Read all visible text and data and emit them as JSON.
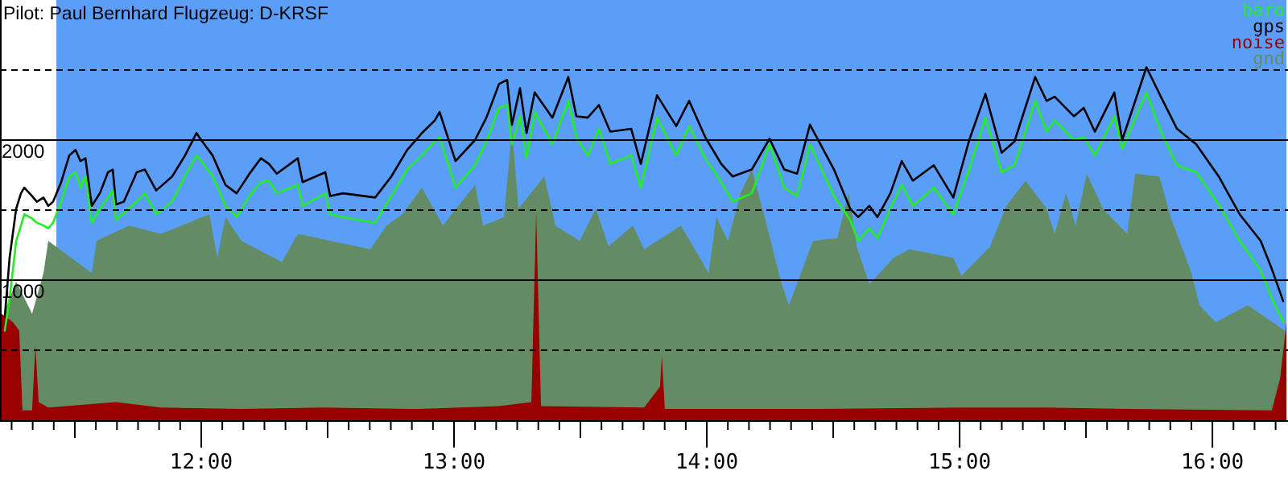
{
  "chart_data": {
    "type": "line",
    "title": "Pilot: Paul Bernhard Flugzeug: D-KRSF",
    "xlim": [
      11.204,
      16.299
    ],
    "ylim": [
      0,
      3000
    ],
    "xticks": [
      {
        "value": 11.25,
        "label": null
      },
      {
        "value": 11.3333,
        "label": null
      },
      {
        "value": 11.4167,
        "label": null
      },
      {
        "value": 11.5,
        "label": null
      },
      {
        "value": 11.5833,
        "label": null
      },
      {
        "value": 11.6667,
        "label": null
      },
      {
        "value": 11.75,
        "label": null
      },
      {
        "value": 11.8333,
        "label": null
      },
      {
        "value": 11.9167,
        "label": null
      },
      {
        "value": 12,
        "label": "12:00"
      },
      {
        "value": 12.0833,
        "label": null
      },
      {
        "value": 12.1667,
        "label": null
      },
      {
        "value": 12.25,
        "label": null
      },
      {
        "value": 12.3333,
        "label": null
      },
      {
        "value": 12.4167,
        "label": null
      },
      {
        "value": 12.5,
        "label": null
      },
      {
        "value": 12.5833,
        "label": null
      },
      {
        "value": 12.6667,
        "label": null
      },
      {
        "value": 12.75,
        "label": null
      },
      {
        "value": 12.8333,
        "label": null
      },
      {
        "value": 12.9167,
        "label": null
      },
      {
        "value": 13,
        "label": "13:00"
      },
      {
        "value": 13.0833,
        "label": null
      },
      {
        "value": 13.1667,
        "label": null
      },
      {
        "value": 13.25,
        "label": null
      },
      {
        "value": 13.3333,
        "label": null
      },
      {
        "value": 13.4167,
        "label": null
      },
      {
        "value": 13.5,
        "label": null
      },
      {
        "value": 13.5833,
        "label": null
      },
      {
        "value": 13.6667,
        "label": null
      },
      {
        "value": 13.75,
        "label": null
      },
      {
        "value": 13.8333,
        "label": null
      },
      {
        "value": 13.9167,
        "label": null
      },
      {
        "value": 14,
        "label": "14:00"
      },
      {
        "value": 14.0833,
        "label": null
      },
      {
        "value": 14.1667,
        "label": null
      },
      {
        "value": 14.25,
        "label": null
      },
      {
        "value": 14.3333,
        "label": null
      },
      {
        "value": 14.4167,
        "label": null
      },
      {
        "value": 14.5,
        "label": null
      },
      {
        "value": 14.5833,
        "label": null
      },
      {
        "value": 14.6667,
        "label": null
      },
      {
        "value": 14.75,
        "label": null
      },
      {
        "value": 14.8333,
        "label": null
      },
      {
        "value": 14.9167,
        "label": null
      },
      {
        "value": 15,
        "label": "15:00"
      },
      {
        "value": 15.0833,
        "label": null
      },
      {
        "value": 15.1667,
        "label": null
      },
      {
        "value": 15.25,
        "label": null
      },
      {
        "value": 15.3333,
        "label": null
      },
      {
        "value": 15.4167,
        "label": null
      },
      {
        "value": 15.5,
        "label": null
      },
      {
        "value": 15.5833,
        "label": null
      },
      {
        "value": 15.6667,
        "label": null
      },
      {
        "value": 15.75,
        "label": null
      },
      {
        "value": 15.8333,
        "label": null
      },
      {
        "value": 15.9167,
        "label": null
      },
      {
        "value": 16,
        "label": "16:00"
      },
      {
        "value": 16.0833,
        "label": null
      },
      {
        "value": 16.1667,
        "label": null
      },
      {
        "value": 16.25,
        "label": null
      }
    ],
    "yticks": [
      {
        "value": 500,
        "label": null
      },
      1000,
      {
        "value": 1500,
        "label": null
      },
      2000,
      {
        "value": 2500,
        "label": null
      }
    ],
    "grid": "y",
    "legend": "top right",
    "bands": [
      {
        "axis": "x",
        "from": 11.427,
        "to": 16.293,
        "color": "#5a9ef8"
      }
    ],
    "series": [
      {
        "name": "baro",
        "color": "#22ee22",
        "x": [
          11.223,
          11.242,
          11.268,
          11.287,
          11.3,
          11.331,
          11.35,
          11.376,
          11.395,
          11.414,
          11.446,
          11.478,
          11.503,
          11.522,
          11.542,
          11.567,
          11.599,
          11.631,
          11.65,
          11.663,
          11.694,
          11.745,
          11.777,
          11.822,
          11.885,
          11.936,
          11.981,
          12,
          12.045,
          12.096,
          12.14,
          12.191,
          12.236,
          12.268,
          12.299,
          12.382,
          12.401,
          12.491,
          12.51,
          12.561,
          12.688,
          12.752,
          12.815,
          12.873,
          12.924,
          12.943,
          13.006,
          13.083,
          13.128,
          13.178,
          13.21,
          13.229,
          13.261,
          13.287,
          13.319,
          13.389,
          13.452,
          13.484,
          13.529,
          13.573,
          13.618,
          13.701,
          13.739,
          13.803,
          13.879,
          13.93,
          13.994,
          14.057,
          14.102,
          14.178,
          14.248,
          14.306,
          14.357,
          14.408,
          14.503,
          14.567,
          14.599,
          14.643,
          14.675,
          14.726,
          14.771,
          14.815,
          14.898,
          14.975,
          15.038,
          15.102,
          15.166,
          15.217,
          15.299,
          15.344,
          15.376,
          15.452,
          15.491,
          15.535,
          15.612,
          15.643,
          15.739,
          15.796,
          15.86,
          15.936,
          16.025,
          16.108,
          16.191,
          16.235,
          16.28
        ],
        "values": [
          640,
          870,
          1280,
          1390,
          1470,
          1440,
          1410,
          1390,
          1370,
          1410,
          1560,
          1740,
          1770,
          1660,
          1740,
          1410,
          1510,
          1590,
          1640,
          1430,
          1480,
          1560,
          1620,
          1470,
          1560,
          1740,
          1890,
          1850,
          1740,
          1530,
          1450,
          1600,
          1700,
          1710,
          1620,
          1680,
          1530,
          1620,
          1470,
          1450,
          1410,
          1600,
          1790,
          1890,
          1990,
          2020,
          1660,
          1820,
          1990,
          2230,
          2250,
          1970,
          2170,
          1870,
          2200,
          1970,
          2280,
          2020,
          1890,
          2080,
          1830,
          1890,
          1660,
          2160,
          1890,
          2100,
          1870,
          1700,
          1560,
          1620,
          1970,
          1660,
          1600,
          1970,
          1600,
          1430,
          1280,
          1370,
          1300,
          1510,
          1680,
          1530,
          1660,
          1470,
          1790,
          2160,
          1770,
          1820,
          2280,
          2060,
          2140,
          2000,
          2020,
          1890,
          2170,
          1940,
          2340,
          2060,
          1820,
          1770,
          1540,
          1280,
          1070,
          870,
          700
        ]
      },
      {
        "name": "gps",
        "color": "#000000",
        "x": [
          11.223,
          11.242,
          11.268,
          11.287,
          11.3,
          11.331,
          11.35,
          11.376,
          11.395,
          11.414,
          11.446,
          11.478,
          11.503,
          11.522,
          11.542,
          11.567,
          11.599,
          11.631,
          11.65,
          11.663,
          11.694,
          11.745,
          11.777,
          11.822,
          11.885,
          11.936,
          11.981,
          12,
          12.045,
          12.096,
          12.14,
          12.191,
          12.236,
          12.268,
          12.299,
          12.382,
          12.401,
          12.491,
          12.51,
          12.561,
          12.688,
          12.752,
          12.815,
          12.873,
          12.924,
          12.943,
          13.006,
          13.083,
          13.128,
          13.178,
          13.21,
          13.229,
          13.261,
          13.287,
          13.319,
          13.389,
          13.452,
          13.484,
          13.529,
          13.573,
          13.618,
          13.701,
          13.739,
          13.803,
          13.879,
          13.93,
          13.994,
          14.057,
          14.102,
          14.178,
          14.248,
          14.306,
          14.357,
          14.408,
          14.503,
          14.567,
          14.599,
          14.643,
          14.675,
          14.726,
          14.771,
          14.815,
          14.898,
          14.975,
          15.038,
          15.102,
          15.166,
          15.217,
          15.299,
          15.344,
          15.376,
          15.452,
          15.491,
          15.535,
          15.612,
          15.643,
          15.739,
          15.796,
          15.86,
          15.936,
          16.025,
          16.108,
          16.191,
          16.235,
          16.28
        ],
        "values": [
          740,
          1160,
          1510,
          1620,
          1660,
          1600,
          1560,
          1590,
          1530,
          1560,
          1700,
          1890,
          1930,
          1850,
          1870,
          1530,
          1620,
          1770,
          1790,
          1540,
          1560,
          1770,
          1790,
          1640,
          1740,
          1890,
          2050,
          2000,
          1890,
          1680,
          1620,
          1760,
          1870,
          1830,
          1760,
          1870,
          1700,
          1770,
          1600,
          1620,
          1590,
          1740,
          1930,
          2050,
          2140,
          2200,
          1850,
          2000,
          2160,
          2400,
          2430,
          2110,
          2370,
          2050,
          2340,
          2160,
          2450,
          2170,
          2160,
          2250,
          2060,
          2080,
          1830,
          2320,
          2100,
          2280,
          2020,
          1830,
          1740,
          1790,
          2010,
          1790,
          1760,
          2110,
          1790,
          1510,
          1450,
          1530,
          1450,
          1620,
          1850,
          1710,
          1820,
          1590,
          2000,
          2330,
          1910,
          1990,
          2450,
          2280,
          2310,
          2170,
          2230,
          2060,
          2340,
          2000,
          2520,
          2310,
          2080,
          1970,
          1740,
          1470,
          1280,
          1080,
          850
        ]
      },
      {
        "name": "noise",
        "color": "#990000",
        "type": "area",
        "x": [
          11.21,
          11.255,
          11.28,
          11.293,
          11.331,
          11.344,
          11.357,
          11.395,
          11.663,
          11.841,
          12.159,
          12.478,
          12.86,
          13.178,
          13.306,
          13.325,
          13.344,
          13.752,
          13.815,
          13.822,
          13.834,
          14.389,
          15.026,
          15.344,
          15.663,
          16.235,
          16.268,
          16.293
        ],
        "values": [
          760,
          700,
          640,
          70,
          70,
          530,
          130,
          90,
          130,
          90,
          80,
          90,
          80,
          100,
          130,
          1480,
          100,
          90,
          240,
          460,
          80,
          80,
          90,
          90,
          80,
          70,
          300,
          700
        ]
      },
      {
        "name": "gnd",
        "color": "#648c64",
        "type": "area",
        "x": [
          11.223,
          11.268,
          11.331,
          11.376,
          11.395,
          11.567,
          11.586,
          11.714,
          11.841,
          12.032,
          12.064,
          12.096,
          12.159,
          12.319,
          12.382,
          12.669,
          12.733,
          12.796,
          12.873,
          12.956,
          13.083,
          13.115,
          13.198,
          13.229,
          13.255,
          13.357,
          13.401,
          13.497,
          13.561,
          13.611,
          13.707,
          13.752,
          13.898,
          14.007,
          14.038,
          14.083,
          14.134,
          14.178,
          14.229,
          14.293,
          14.325,
          14.42,
          14.516,
          14.561,
          14.593,
          14.643,
          14.739,
          14.803,
          14.975,
          15.007,
          15.121,
          15.185,
          15.261,
          15.344,
          15.376,
          15.421,
          15.459,
          15.503,
          15.567,
          15.663,
          15.694,
          15.79,
          15.835,
          15.917,
          15.949,
          16.013,
          16.14,
          16.287
        ],
        "values": [
          780,
          990,
          760,
          1050,
          1280,
          1050,
          1280,
          1390,
          1330,
          1470,
          1160,
          1450,
          1280,
          1130,
          1330,
          1220,
          1390,
          1470,
          1660,
          1390,
          1680,
          1390,
          1450,
          2080,
          1510,
          1740,
          1390,
          1280,
          1510,
          1240,
          1390,
          1220,
          1390,
          1050,
          1450,
          1280,
          1620,
          1790,
          1450,
          990,
          820,
          1280,
          1300,
          1620,
          1240,
          970,
          1160,
          1220,
          1160,
          1030,
          1240,
          1530,
          1710,
          1510,
          1330,
          1620,
          1390,
          1760,
          1510,
          1330,
          1760,
          1740,
          1450,
          1050,
          820,
          700,
          820,
          640
        ]
      }
    ]
  }
}
